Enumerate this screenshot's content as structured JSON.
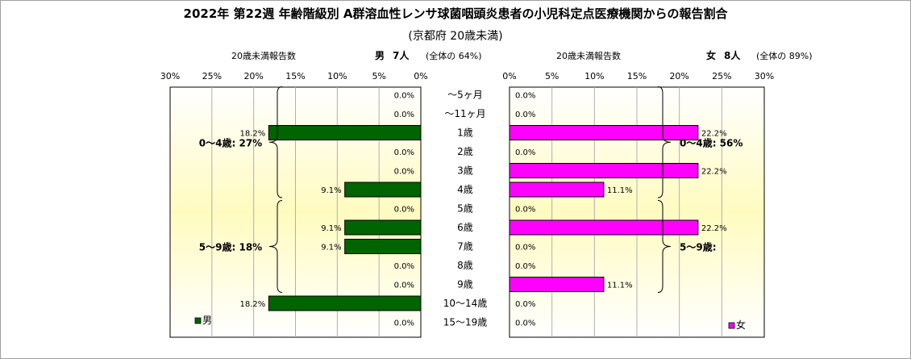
{
  "title": "2022年 第22週 年齢階級別 A群溶血性レンサ球菌咽頭炎患者の小児科定点医療機関からの報告割合",
  "subtitle": "(京都府 20歳未満)",
  "left_header": {
    "axis_label": "20歳未満報告数",
    "sex": "男",
    "count": "7人",
    "share": "(全体の 64%)"
  },
  "right_header": {
    "axis_label": "20歳未満報告数",
    "sex": "女",
    "count": "8人",
    "share": "(全体の 89%)"
  },
  "colors": {
    "male": "#006400",
    "female": "#ff00ff",
    "plot_bg_center": "#fffbc0",
    "plot_bg_edge": "#ffffff"
  },
  "chart_data": [
    {
      "type": "bar",
      "orientation": "horizontal",
      "direction": "right-to-left",
      "categories": [
        "～5ヶ月",
        "～11ヶ月",
        "1歳",
        "2歳",
        "3歳",
        "4歳",
        "5歳",
        "6歳",
        "7歳",
        "8歳",
        "9歳",
        "10～14歳",
        "15～19歳"
      ],
      "series": [
        {
          "name": "男",
          "values": [
            0.0,
            0.0,
            18.2,
            0.0,
            0.0,
            9.1,
            0.0,
            9.1,
            9.1,
            0.0,
            0.0,
            18.2,
            0.0
          ]
        }
      ],
      "data_labels": [
        "0.0%",
        "0.0%",
        "18.2%",
        "0.0%",
        "0.0%",
        "9.1%",
        "0.0%",
        "9.1%",
        "9.1%",
        "0.0%",
        "0.0%",
        "18.2%",
        "0.0%"
      ],
      "xlim": [
        0,
        30
      ],
      "ticks": [
        "30%",
        "25%",
        "20%",
        "15%",
        "10%",
        "5%",
        "0%"
      ],
      "gridlines": true,
      "legend": {
        "label": "男",
        "placement": "bottom-left"
      },
      "brackets": [
        {
          "label": "0～4歳: 27%",
          "from": "～5ヶ月",
          "to": "4歳"
        },
        {
          "label": "5～9歳: 18%",
          "from": "5歳",
          "to": "9歳"
        }
      ]
    },
    {
      "type": "bar",
      "orientation": "horizontal",
      "direction": "left-to-right",
      "categories": [
        "～5ヶ月",
        "～11ヶ月",
        "1歳",
        "2歳",
        "3歳",
        "4歳",
        "5歳",
        "6歳",
        "7歳",
        "8歳",
        "9歳",
        "10～14歳",
        "15～19歳"
      ],
      "series": [
        {
          "name": "女",
          "values": [
            0.0,
            0.0,
            22.2,
            0.0,
            22.2,
            11.1,
            0.0,
            22.2,
            0.0,
            0.0,
            11.1,
            0.0,
            0.0
          ]
        }
      ],
      "data_labels": [
        "0.0%",
        "0.0%",
        "22.2%",
        "0.0%",
        "22.2%",
        "11.1%",
        "0.0%",
        "22.2%",
        "0.0%",
        "0.0%",
        "11.1%",
        "0.0%",
        "0.0%"
      ],
      "xlim": [
        0,
        30
      ],
      "ticks": [
        "0%",
        "5%",
        "10%",
        "15%",
        "20%",
        "25%",
        "30%"
      ],
      "gridlines": true,
      "legend": {
        "label": "女",
        "placement": "bottom-right"
      },
      "brackets": [
        {
          "label": "0～4歳: 56%",
          "from": "～5ヶ月",
          "to": "4歳"
        },
        {
          "label": "5～9歳:",
          "from": "5歳",
          "to": "9歳"
        }
      ]
    }
  ]
}
